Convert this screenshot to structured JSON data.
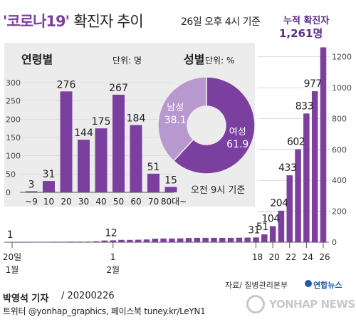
{
  "title_quoted": "'코로나19'",
  "title_rest": "확진자 추이",
  "basis": "26일 오후 4시 기준",
  "cumulative_label": "누적 확진자",
  "cumulative_value": "1,261명",
  "credit_name": "박영석 기자",
  "credit_date": " / 20200226",
  "credit_sns": "트위터 @yonhap_graphics, 페이스북 tuney.kr/LeYN1",
  "source": "자료/ 질병관리본부",
  "agency": "연합뉴스",
  "watermark": "YONHAP NEWS",
  "colors": {
    "accent": "#7b3fa0",
    "light": "#b798cf",
    "panel": "#ececec"
  },
  "chart_data": [
    {
      "type": "bar",
      "yticks": [
        0,
        200,
        400,
        600,
        800,
        1000,
        1200
      ],
      "ylim": [
        0,
        1300
      ],
      "dates": [
        "1/20",
        "1/21",
        "1/22",
        "1/23",
        "1/24",
        "1/25",
        "1/26",
        "1/27",
        "1/28",
        "1/29",
        "1/30",
        "1/31",
        "2/1",
        "2/2",
        "2/3",
        "2/4",
        "2/5",
        "2/6",
        "2/7",
        "2/8",
        "2/9",
        "2/10",
        "2/11",
        "2/12",
        "2/13",
        "2/14",
        "2/15",
        "2/16",
        "2/17",
        "2/18",
        "2/19",
        "2/20",
        "2/21",
        "2/22",
        "2/23",
        "2/24",
        "2/25",
        "2/26"
      ],
      "values": [
        1,
        1,
        1,
        2,
        2,
        3,
        3,
        4,
        4,
        4,
        6,
        11,
        12,
        15,
        15,
        16,
        18,
        23,
        24,
        24,
        25,
        27,
        28,
        28,
        28,
        28,
        28,
        29,
        30,
        31,
        51,
        104,
        204,
        433,
        602,
        833,
        977,
        1261
      ],
      "labeled_indices": [
        0,
        12,
        29,
        30,
        31,
        32,
        33,
        34,
        35,
        36
      ],
      "x_tick_labels": [
        {
          "index": 0,
          "day": "20일",
          "month": "1월"
        },
        {
          "index": 12,
          "day": "1",
          "month": "2월"
        },
        {
          "index": 29,
          "day": "18",
          "month": ""
        },
        {
          "index": 31,
          "day": "20",
          "month": ""
        },
        {
          "index": 33,
          "day": "22",
          "month": ""
        },
        {
          "index": 35,
          "day": "24",
          "month": ""
        },
        {
          "index": 37,
          "day": "26",
          "month": ""
        }
      ]
    },
    {
      "type": "bar",
      "title": "연령별",
      "unit": "단위: 명",
      "categories": [
        "~9",
        "10",
        "20",
        "30",
        "40",
        "50",
        "60",
        "70",
        "80대~"
      ],
      "values": [
        3,
        31,
        276,
        144,
        175,
        267,
        184,
        51,
        15
      ],
      "yticks": [
        0,
        50,
        100,
        150,
        200,
        250,
        300
      ],
      "ylim": [
        0,
        300
      ]
    },
    {
      "type": "pie",
      "title": "성별",
      "unit": "단위: %",
      "labels": [
        "여성",
        "남성"
      ],
      "values": [
        61.9,
        38.1
      ],
      "colors": [
        "#7b3fa0",
        "#b798cf"
      ],
      "note": "오전 9시 기준"
    }
  ]
}
